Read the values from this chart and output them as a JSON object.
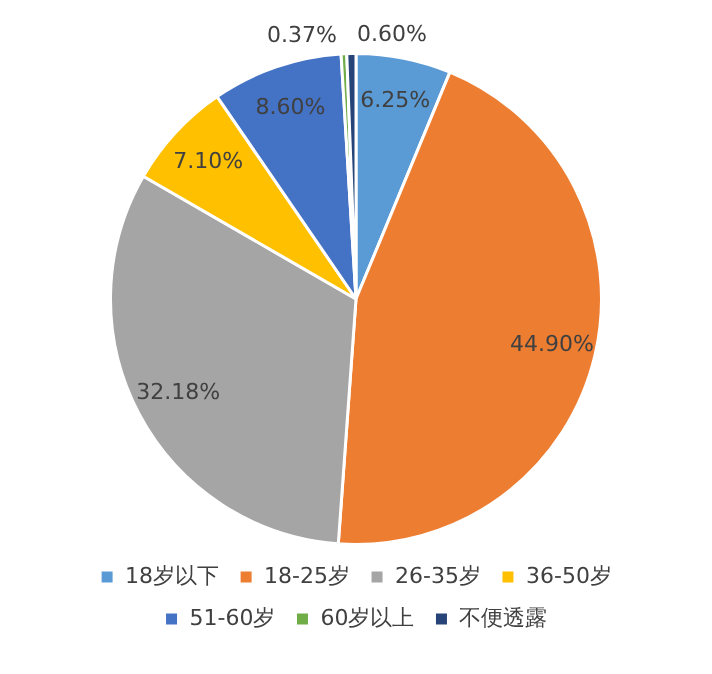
{
  "chart_data": {
    "type": "pie",
    "categories": [
      "18岁以下",
      "18-25岁",
      "26-35岁",
      "36-50岁",
      "51-60岁",
      "60岁以上",
      "不便透露"
    ],
    "values": [
      6.25,
      44.9,
      32.18,
      7.1,
      8.6,
      0.37,
      0.6
    ],
    "value_labels": [
      "6.25%",
      "44.90%",
      "32.18%",
      "7.10%",
      "8.60%",
      "0.37%",
      "0.60%"
    ],
    "colors": [
      "#5b9bd5",
      "#ed7d31",
      "#a5a5a5",
      "#ffc000",
      "#4472c4",
      "#70ad47",
      "#264478"
    ],
    "legend": "bottom"
  }
}
